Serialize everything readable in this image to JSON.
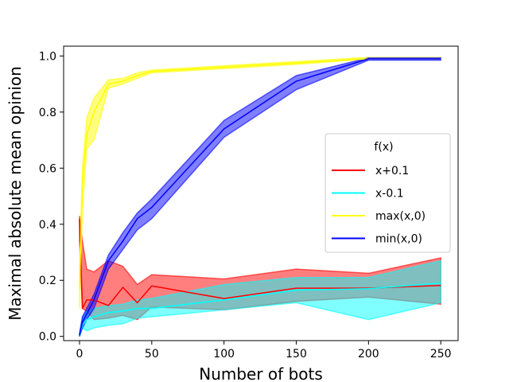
{
  "chart_data": {
    "type": "line",
    "title": "",
    "xlabel": "Number of bots",
    "ylabel": "Maximal absolute mean opinion",
    "xlim": [
      -11,
      262
    ],
    "ylim": [
      -0.015,
      1.035
    ],
    "xticks": [
      0,
      50,
      100,
      150,
      200,
      250
    ],
    "yticks": [
      0.0,
      0.2,
      0.4,
      0.6,
      0.8,
      1.0
    ],
    "grid": false,
    "legend": {
      "title": "f(x)",
      "placement": "center-right"
    },
    "series": [
      {
        "name": "x+0.1",
        "color": "#ff0000",
        "x": [
          0,
          2,
          5,
          10,
          20,
          30,
          40,
          50,
          100,
          150,
          200,
          250
        ],
        "y": [
          0.42,
          0.1,
          0.13,
          0.13,
          0.11,
          0.175,
          0.12,
          0.18,
          0.135,
          0.172,
          0.172,
          0.182
        ],
        "upper": [
          0.43,
          0.34,
          0.24,
          0.23,
          0.27,
          0.25,
          0.185,
          0.22,
          0.205,
          0.24,
          0.225,
          0.28
        ],
        "lower": [
          0.34,
          0.1,
          0.09,
          0.06,
          0.065,
          0.075,
          0.06,
          0.105,
          0.095,
          0.125,
          0.14,
          0.115
        ]
      },
      {
        "name": "x-0.1",
        "color": "#00ffff",
        "x": [
          0,
          2,
          5,
          10,
          20,
          30,
          40,
          50,
          100,
          150,
          200,
          250
        ],
        "y": [
          0.005,
          0.04,
          0.06,
          0.07,
          0.085,
          0.09,
          0.1,
          0.1,
          0.13,
          0.165,
          0.17,
          0.19
        ],
        "upper": [
          0.01,
          0.07,
          0.09,
          0.1,
          0.11,
          0.115,
          0.13,
          0.135,
          0.185,
          0.21,
          0.21,
          0.27
        ],
        "lower": [
          0.0,
          0.03,
          0.02,
          0.03,
          0.04,
          0.045,
          0.065,
          0.07,
          0.095,
          0.12,
          0.06,
          0.12
        ]
      },
      {
        "name": "max(x,0)",
        "color": "#ffff00",
        "x": [
          0,
          2,
          5,
          10,
          20,
          30,
          40,
          50,
          100,
          150,
          200,
          250
        ],
        "y": [
          0.17,
          0.55,
          0.72,
          0.8,
          0.9,
          0.91,
          0.93,
          0.945,
          0.96,
          0.975,
          0.99,
          0.99
        ],
        "upper": [
          0.25,
          0.6,
          0.78,
          0.85,
          0.915,
          0.92,
          0.94,
          0.95,
          0.965,
          0.98,
          0.995,
          0.995
        ],
        "lower": [
          0.1,
          0.45,
          0.67,
          0.7,
          0.885,
          0.9,
          0.92,
          0.94,
          0.955,
          0.97,
          0.99,
          0.99
        ]
      },
      {
        "name": "min(x,0)",
        "color": "#0000ff",
        "x": [
          0,
          2,
          5,
          10,
          20,
          30,
          40,
          50,
          100,
          150,
          200,
          250
        ],
        "y": [
          0.005,
          0.05,
          0.08,
          0.13,
          0.27,
          0.34,
          0.42,
          0.46,
          0.74,
          0.91,
          0.99,
          0.99
        ],
        "upper": [
          0.01,
          0.07,
          0.1,
          0.15,
          0.29,
          0.37,
          0.44,
          0.49,
          0.77,
          0.93,
          0.993,
          0.993
        ],
        "lower": [
          0.0,
          0.03,
          0.06,
          0.1,
          0.24,
          0.31,
          0.38,
          0.42,
          0.71,
          0.88,
          0.985,
          0.985
        ]
      }
    ]
  }
}
